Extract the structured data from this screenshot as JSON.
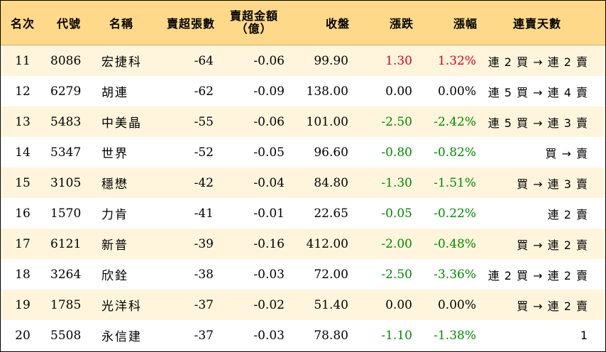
{
  "headers": {
    "rank": "名次",
    "code": "代號",
    "name": "名稱",
    "net_sell_lots": "賣超張數",
    "net_sell_amount_line1": "賣超金額",
    "net_sell_amount_line2": "（億）",
    "close": "收盤",
    "change": "漲跌",
    "change_pct": "漲幅",
    "streak": "連賣天數"
  },
  "colors": {
    "header_bg": "#ffd98a",
    "row_alt_bg": "#fff5dc",
    "up": "#e0001b",
    "down": "#008a00"
  },
  "rows": [
    {
      "rank": "11",
      "code": "8086",
      "name": "宏捷科",
      "lots": "-64",
      "amount": "-0.06",
      "close": "99.90",
      "change": "1.30",
      "pct": "1.32%",
      "dir": "up",
      "streak": "連 2 買 → 連 2 賣"
    },
    {
      "rank": "12",
      "code": "6279",
      "name": "胡連",
      "lots": "-62",
      "amount": "-0.09",
      "close": "138.00",
      "change": "0.00",
      "pct": "0.00%",
      "dir": "flat",
      "streak": "連 5 買 → 連 4 賣"
    },
    {
      "rank": "13",
      "code": "5483",
      "name": "中美晶",
      "lots": "-55",
      "amount": "-0.06",
      "close": "101.00",
      "change": "-2.50",
      "pct": "-2.42%",
      "dir": "down",
      "streak": "連 5 買 → 連 3 賣"
    },
    {
      "rank": "14",
      "code": "5347",
      "name": "世界",
      "lots": "-52",
      "amount": "-0.05",
      "close": "96.60",
      "change": "-0.80",
      "pct": "-0.82%",
      "dir": "down",
      "streak": "買 → 賣"
    },
    {
      "rank": "15",
      "code": "3105",
      "name": "穩懋",
      "lots": "-42",
      "amount": "-0.04",
      "close": "84.80",
      "change": "-1.30",
      "pct": "-1.51%",
      "dir": "down",
      "streak": "買 → 連 3 賣"
    },
    {
      "rank": "16",
      "code": "1570",
      "name": "力肯",
      "lots": "-41",
      "amount": "-0.01",
      "close": "22.65",
      "change": "-0.05",
      "pct": "-0.22%",
      "dir": "down",
      "streak": "連 2 賣"
    },
    {
      "rank": "17",
      "code": "6121",
      "name": "新普",
      "lots": "-39",
      "amount": "-0.16",
      "close": "412.00",
      "change": "-2.00",
      "pct": "-0.48%",
      "dir": "down",
      "streak": "買 → 連 2 賣"
    },
    {
      "rank": "18",
      "code": "3264",
      "name": "欣銓",
      "lots": "-38",
      "amount": "-0.03",
      "close": "72.00",
      "change": "-2.50",
      "pct": "-3.36%",
      "dir": "down",
      "streak": "連 2 買 → 連 2 賣"
    },
    {
      "rank": "19",
      "code": "1785",
      "name": "光洋科",
      "lots": "-37",
      "amount": "-0.02",
      "close": "51.40",
      "change": "0.00",
      "pct": "0.00%",
      "dir": "flat",
      "streak": "買 → 連 2 賣"
    },
    {
      "rank": "20",
      "code": "5508",
      "name": "永信建",
      "lots": "-37",
      "amount": "-0.03",
      "close": "78.80",
      "change": "-1.10",
      "pct": "-1.38%",
      "dir": "down",
      "streak": "1"
    }
  ]
}
